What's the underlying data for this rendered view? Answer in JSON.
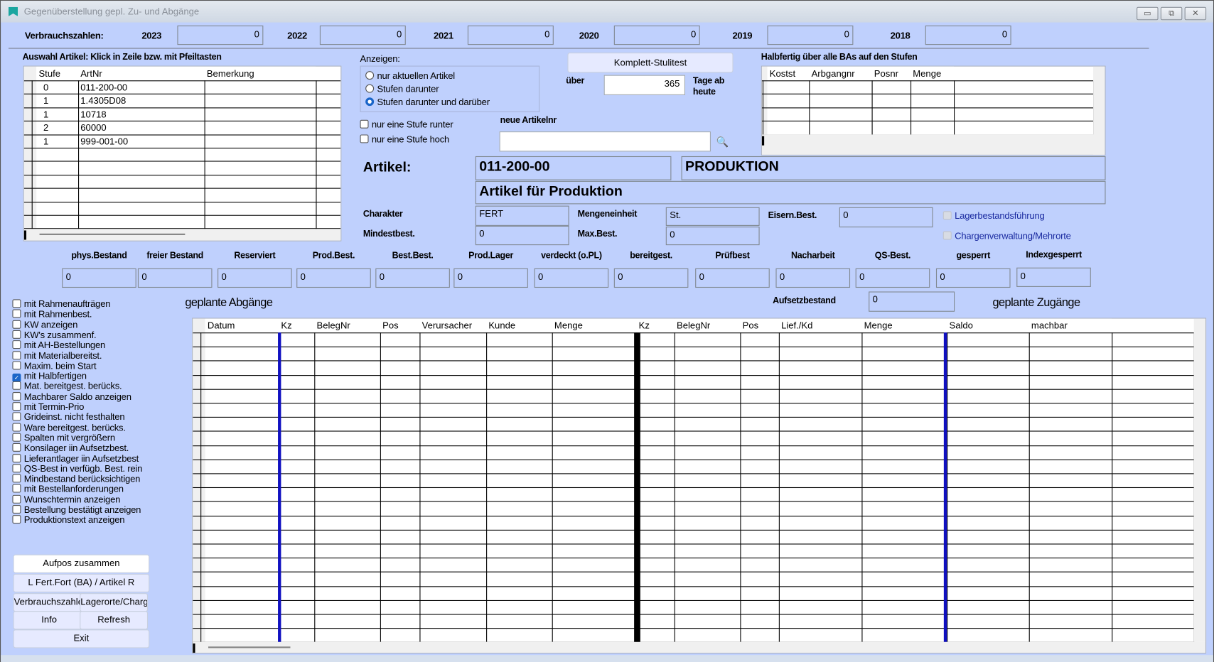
{
  "window": {
    "title": "Gegenüberstellung gepl. Zu- und Abgänge",
    "minimize": "▭",
    "restore": "⧉",
    "close": "✕"
  },
  "verbrauch": {
    "label": "Verbrauchszahlen:",
    "years": [
      {
        "year": "2023",
        "value": "0"
      },
      {
        "year": "2022",
        "value": "0"
      },
      {
        "year": "2021",
        "value": "0"
      },
      {
        "year": "2020",
        "value": "0"
      },
      {
        "year": "2019",
        "value": "0"
      },
      {
        "year": "2018",
        "value": "0"
      }
    ]
  },
  "auswahl": {
    "title": "Auswahl  Artikel: Klick in Zeile bzw. mit Pfeiltasten",
    "columns": [
      "Stufe",
      "ArtNr",
      "Bemerkung"
    ],
    "rows": [
      [
        "0",
        "011-200-00",
        ""
      ],
      [
        "1",
        "1.4305D08",
        ""
      ],
      [
        "1",
        "10718",
        ""
      ],
      [
        "2",
        "60000",
        ""
      ],
      [
        "1",
        "999-001-00",
        ""
      ]
    ]
  },
  "anzeigen": {
    "title": "Anzeigen:",
    "options": [
      "nur aktuellen Artikel",
      "Stufen darunter",
      "Stufen darunter und darüber"
    ],
    "selected": 2,
    "check_runter": "nur eine Stufe runter",
    "check_hoch": "nur eine Stufe hoch"
  },
  "stulitest": {
    "button": "Komplett-Stulitest",
    "ueber": "über",
    "days": "365",
    "tage": "Tage ab",
    "heute": "heute",
    "neue_label": "neue Artikelnr",
    "neue_value": "",
    "search_icon": "magnifier-icon"
  },
  "halbfertig": {
    "title": "Halbfertig über alle BAs auf den Stufen",
    "columns": [
      "Kostst",
      "Arbgangnr",
      "Posnr",
      "Menge"
    ]
  },
  "artikel": {
    "label": "Artikel:",
    "nr": "011-200-00",
    "bereich": "PRODUKTION",
    "bezeichnung": "Artikel für Produktion",
    "charakter_label": "Charakter",
    "charakter": "FERT",
    "mindest_label": "Mindestbest.",
    "mindest": "0",
    "me_label": "Mengeneinheit",
    "me": "St.",
    "max_label": "Max.Best.",
    "max": "0",
    "eisern_label": "Eisern.Best.",
    "eisern": "0",
    "lagerbestand": "Lagerbestandsführung",
    "charge": "Chargenverwaltung/Mehrorte"
  },
  "bestaende": [
    {
      "label": "phys.Bestand",
      "value": "0"
    },
    {
      "label": "freier Bestand",
      "value": "0"
    },
    {
      "label": "Reserviert",
      "value": "0"
    },
    {
      "label": "Prod.Best.",
      "value": "0"
    },
    {
      "label": "Best.Best.",
      "value": "0"
    },
    {
      "label": "Prod.Lager",
      "value": "0"
    },
    {
      "label": "verdeckt (o.PL)",
      "value": "0"
    },
    {
      "label": "bereitgest.",
      "value": "0"
    },
    {
      "label": "Prüfbest",
      "value": "0"
    },
    {
      "label": "Nacharbeit",
      "value": "0"
    },
    {
      "label": "QS-Best.",
      "value": "0"
    },
    {
      "label": "gesperrt",
      "value": "0"
    },
    {
      "label": "Indexgesperrt",
      "value": "0"
    }
  ],
  "aufsetz": {
    "label": "Aufsetzbestand",
    "value": "0"
  },
  "abgaenge_title": "geplante Abgänge",
  "zugaenge_title": "geplante Zugänge",
  "plan_columns": [
    "Datum",
    "Kz",
    "BelegNr",
    "Pos",
    "Verursacher",
    "Kunde",
    "Menge",
    "Kz",
    "BelegNr",
    "Pos",
    "Lief./Kd",
    "Menge",
    "Saldo",
    "machbar"
  ],
  "options": [
    {
      "label": "mit Rahmenaufträgen",
      "checked": false
    },
    {
      "label": "mit Rahmenbest.",
      "checked": false
    },
    {
      "label": "KW anzeigen",
      "checked": false
    },
    {
      "label": "KW's zusammenf.",
      "checked": false
    },
    {
      "label": "mit AH-Bestellungen",
      "checked": false
    },
    {
      "label": "mit Materialbereitst.",
      "checked": false
    },
    {
      "label": "Maxim. beim Start",
      "checked": false
    },
    {
      "label": "mit Halbfertigen",
      "checked": true
    },
    {
      "label": "Mat. bereitgest. berücks.",
      "checked": false
    },
    {
      "label": "Machbarer Saldo anzeigen",
      "checked": false
    },
    {
      "label": "mit  Termin-Prio",
      "checked": false
    },
    {
      "label": "Grideinst. nicht festhalten",
      "checked": false
    },
    {
      "label": "Ware bereitgest. berücks.",
      "checked": false
    },
    {
      "label": "Spalten mit vergrößern",
      "checked": false
    },
    {
      "label": "Konsilager iin Aufsetzbest.",
      "checked": false
    },
    {
      "label": "Lieferantlager iin Aufsetzbest",
      "checked": false
    },
    {
      "label": "QS-Best in verfügb. Best. rein",
      "checked": false
    },
    {
      "label": "Mindbestand berücksichtigen",
      "checked": false
    },
    {
      "label": "mit Bestellanforderungen",
      "checked": false
    },
    {
      "label": "Wunschtermin anzeigen",
      "checked": false
    },
    {
      "label": "Bestellung bestätigt anzeigen",
      "checked": false
    },
    {
      "label": "Produktionstext anzeigen",
      "checked": false
    }
  ],
  "buttons": {
    "aufpos": "Aufpos zusammen",
    "fert": "L Fert.Fort (BA) / Artikel R",
    "verbrauch": "Verbrauchszahlen",
    "lagerorte": "Lagerorte/Charge",
    "info": "Info",
    "refresh": "Refresh",
    "exit": "Exit"
  }
}
